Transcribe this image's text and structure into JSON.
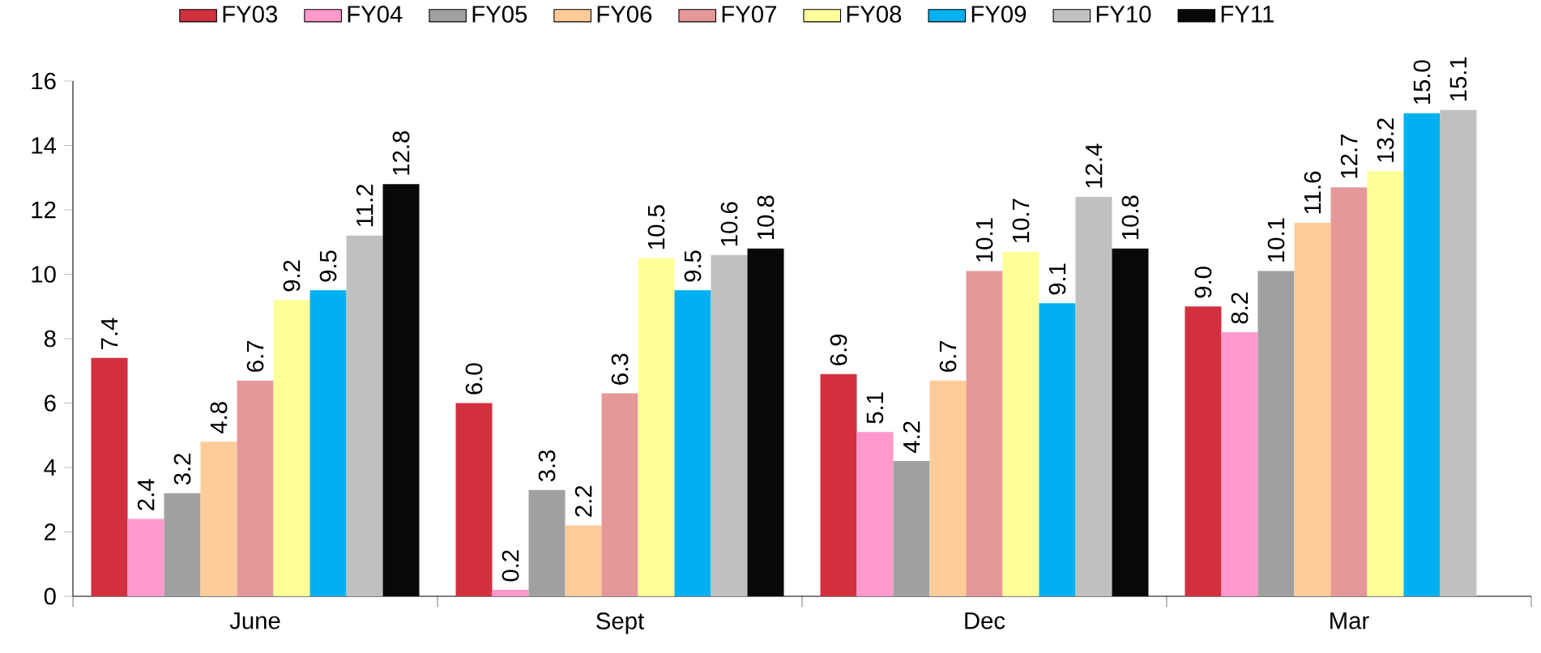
{
  "chart_data": {
    "type": "bar",
    "categories": [
      "June",
      "Sept",
      "Dec",
      "Mar"
    ],
    "series": [
      {
        "name": "FY03",
        "color": "#d2303f",
        "values": [
          7.4,
          6.0,
          6.9,
          9.0
        ],
        "value_labels": [
          "7.4",
          "6.0",
          "6.9",
          "9.0"
        ]
      },
      {
        "name": "FY04",
        "color": "#ff99cc",
        "values": [
          2.4,
          0.2,
          5.1,
          8.2
        ],
        "value_labels": [
          "2.4",
          "0.2",
          "5.1",
          "8.2"
        ]
      },
      {
        "name": "FY05",
        "color": "#a0a0a0",
        "values": [
          3.2,
          3.3,
          4.2,
          10.1
        ],
        "value_labels": [
          "3.2",
          "3.3",
          "4.2",
          "10.1"
        ]
      },
      {
        "name": "FY06",
        "color": "#ffcc99",
        "values": [
          4.8,
          2.2,
          6.7,
          11.6
        ],
        "value_labels": [
          "4.8",
          "2.2",
          "6.7",
          "11.6"
        ]
      },
      {
        "name": "FY07",
        "color": "#e69898",
        "values": [
          6.7,
          6.3,
          10.1,
          12.7
        ],
        "value_labels": [
          "6.7",
          "6.3",
          "10.1",
          "12.7"
        ]
      },
      {
        "name": "FY08",
        "color": "#ffff99",
        "values": [
          9.2,
          10.5,
          10.7,
          13.2
        ],
        "value_labels": [
          "9.2",
          "10.5",
          "10.7",
          "13.2"
        ]
      },
      {
        "name": "FY09",
        "color": "#00b0f0",
        "values": [
          9.5,
          9.5,
          9.1,
          15.0
        ],
        "value_labels": [
          "9.5",
          "9.5",
          "9.1",
          "15.0"
        ]
      },
      {
        "name": "FY10",
        "color": "#c0c0c0",
        "values": [
          11.2,
          10.6,
          12.4,
          15.1
        ],
        "value_labels": [
          "11.2",
          "10.6",
          "12.4",
          "15.1"
        ]
      },
      {
        "name": "FY11",
        "color": "#080808",
        "values": [
          12.8,
          10.8,
          10.8,
          null
        ],
        "value_labels": [
          "12.8",
          "10.8",
          "10.8",
          null
        ]
      }
    ],
    "ylim": [
      0,
      16
    ],
    "yticks": [
      0,
      2,
      4,
      6,
      8,
      10,
      12,
      14,
      16
    ],
    "legend": "top",
    "grid": false
  }
}
